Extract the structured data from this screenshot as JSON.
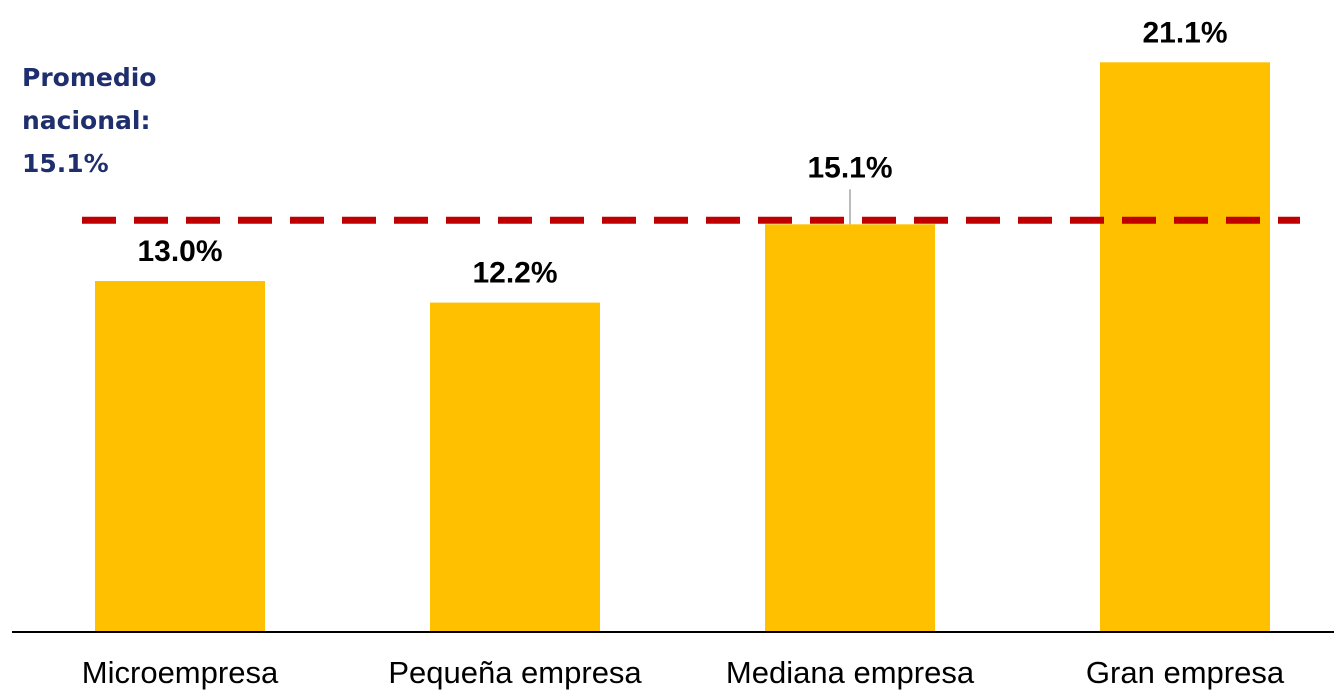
{
  "chart_data": {
    "type": "bar",
    "categories": [
      "Microempresa",
      "Pequeña empresa",
      "Mediana empresa",
      "Gran empresa"
    ],
    "values": [
      13.0,
      12.2,
      15.1,
      21.1
    ],
    "value_labels": [
      "13.0%",
      "12.2%",
      "15.1%",
      "21.1%"
    ],
    "ylim": [
      0,
      25
    ],
    "grid": false,
    "bar_color": "#FFC000",
    "reference_line": {
      "value": 15.1,
      "label_lines": [
        "Promedio",
        "nacional:",
        "15.1%"
      ],
      "color": "#C00000",
      "style": "dashed",
      "label_color": "#1F2F6E"
    }
  }
}
